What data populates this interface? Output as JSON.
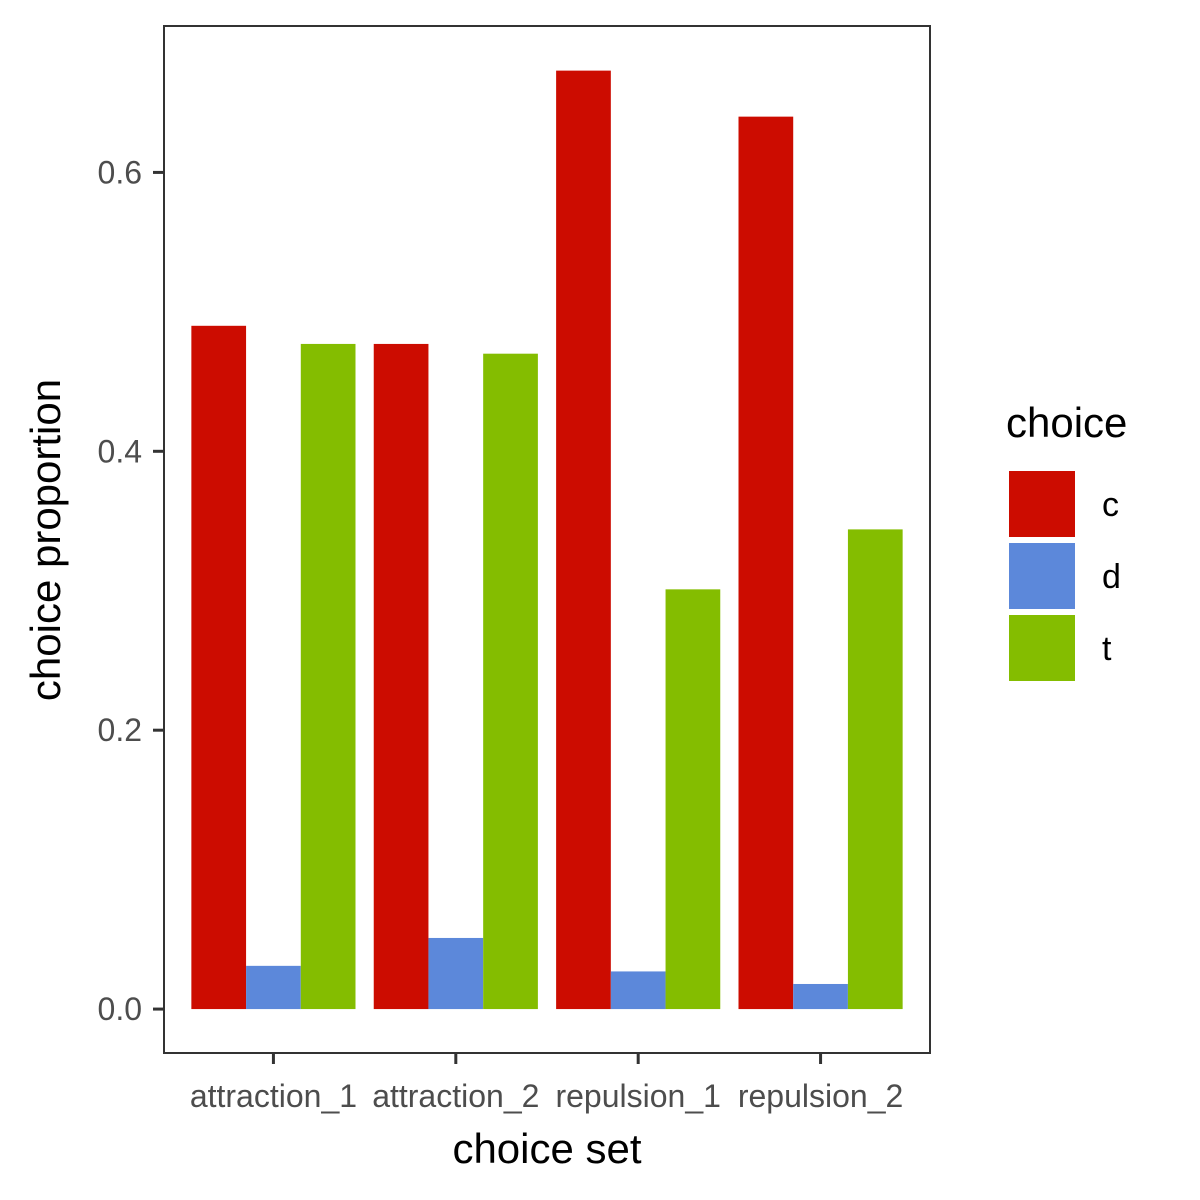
{
  "chart_data": {
    "type": "bar",
    "categories": [
      "attraction_1",
      "attraction_2",
      "repulsion_1",
      "repulsion_2"
    ],
    "series": [
      {
        "name": "c",
        "color": "#CC0C00",
        "values": [
          0.49,
          0.477,
          0.673,
          0.64
        ]
      },
      {
        "name": "d",
        "color": "#5C88DA",
        "values": [
          0.031,
          0.051,
          0.027,
          0.018
        ]
      },
      {
        "name": "t",
        "color": "#84BD00",
        "values": [
          0.477,
          0.47,
          0.301,
          0.344
        ]
      }
    ],
    "xlabel": "choice set",
    "ylabel": "choice proportion",
    "ylim": [
      -0.0315,
      0.705
    ],
    "yticks": [
      0.0,
      0.2,
      0.4,
      0.6
    ],
    "ytick_labels": [
      "0.0",
      "0.2",
      "0.4",
      "0.6"
    ],
    "legend": {
      "title": "choice",
      "position": "right"
    },
    "grid": false,
    "panel_border_color": "#333333"
  }
}
